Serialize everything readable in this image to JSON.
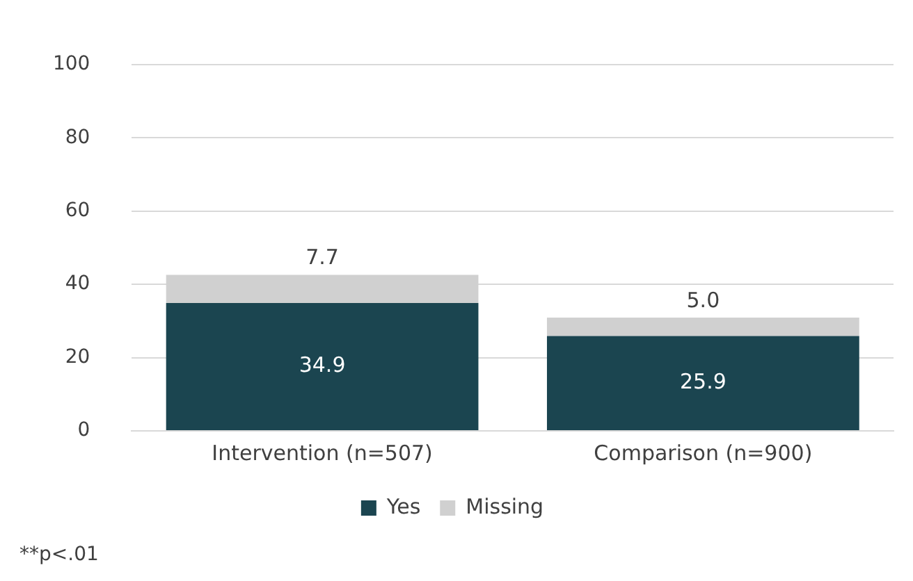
{
  "chart_data": {
    "type": "bar",
    "stacked": true,
    "categories": [
      "Intervention (n=507)",
      "Comparison (n=900)"
    ],
    "series": [
      {
        "name": "Yes",
        "color": "#1b4550",
        "values": [
          34.9,
          25.9
        ],
        "value_labels": [
          "34.9",
          "25.9"
        ]
      },
      {
        "name": "Missing",
        "color": "#d0d0d0",
        "values": [
          7.7,
          5.0
        ],
        "value_labels": [
          "7.7",
          "5.0"
        ]
      }
    ],
    "ylim": [
      0,
      100
    ],
    "yticks": [
      0,
      20,
      40,
      60,
      80,
      100
    ],
    "grid": "y",
    "legend": "bottom",
    "annotations": [
      "**p<.01"
    ]
  }
}
